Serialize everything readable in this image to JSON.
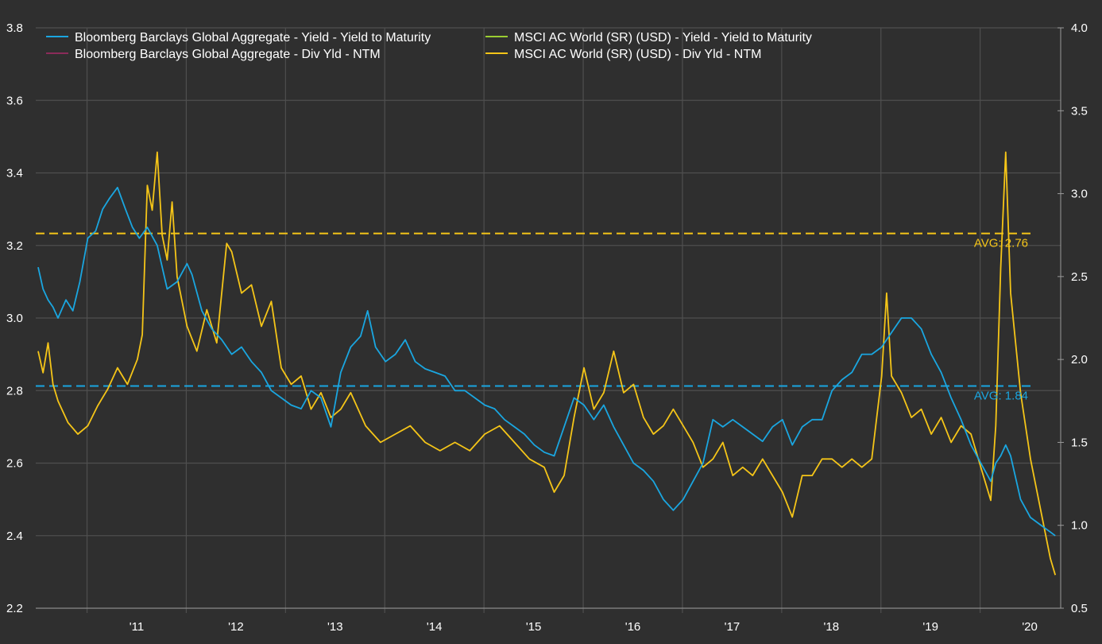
{
  "colors": {
    "background": "#2f2f2f",
    "grid": "#4f4f4f",
    "axis": "#9a9a9a",
    "yield_blue": "#1aa6e0",
    "div_yellow": "#f5c518",
    "div_maroon": "#8b2b5a",
    "msci_green": "#9acd32"
  },
  "chart_data": {
    "type": "line",
    "grid": true,
    "legend_position": "top-left",
    "x_ticks": [
      "'11",
      "'12",
      "'13",
      "'14",
      "'15",
      "'16",
      "'17",
      "'18",
      "'19",
      "'20"
    ],
    "x_range": [
      2010.0,
      2020.3
    ],
    "y_left": {
      "min": 2.2,
      "max": 3.8,
      "ticks": [
        "2.2",
        "2.4",
        "2.6",
        "2.8",
        "3.0",
        "3.2",
        "3.4",
        "3.6",
        "3.8"
      ]
    },
    "y_right": {
      "min": 0.5,
      "max": 4.0,
      "ticks": [
        "0.5",
        "1.0",
        "1.5",
        "2.0",
        "2.5",
        "3.0",
        "3.5",
        "4.0"
      ]
    },
    "legend": [
      {
        "label": "Bloomberg Barclays Global Aggregate - Yield - Yield to Maturity",
        "color": "#1aa6e0"
      },
      {
        "label": "Bloomberg Barclays Global Aggregate - Div Yld - NTM",
        "color": "#8b2b5a"
      },
      {
        "label": "MSCI AC World (SR) (USD) - Yield - Yield to Maturity",
        "color": "#9acd32"
      },
      {
        "label": "MSCI AC World (SR) (USD) - Div Yld - NTM",
        "color": "#f5c518"
      }
    ],
    "averages": [
      {
        "label": "AVG:  2.76",
        "value": 2.76,
        "axis": "right",
        "color": "#f5c518"
      },
      {
        "label": "AVG:  1.84",
        "value": 1.84,
        "axis": "right",
        "color": "#1aa6e0"
      }
    ],
    "series": [
      {
        "name": "Bloomberg Barclays Global Aggregate - Yield - Yield to Maturity",
        "axis": "left",
        "color": "#1aa6e0",
        "x": [
          2010.0,
          2010.05,
          2010.1,
          2010.15,
          2010.2,
          2010.28,
          2010.35,
          2010.42,
          2010.5,
          2010.58,
          2010.65,
          2010.72,
          2010.8,
          2010.88,
          2010.95,
          2011.02,
          2011.1,
          2011.2,
          2011.3,
          2011.4,
          2011.5,
          2011.55,
          2011.65,
          2011.75,
          2011.85,
          2011.95,
          2012.05,
          2012.15,
          2012.25,
          2012.35,
          2012.45,
          2012.55,
          2012.65,
          2012.75,
          2012.85,
          2012.95,
          2013.05,
          2013.15,
          2013.25,
          2013.32,
          2013.4,
          2013.5,
          2013.6,
          2013.7,
          2013.8,
          2013.9,
          2014.0,
          2014.1,
          2014.2,
          2014.3,
          2014.4,
          2014.5,
          2014.6,
          2014.7,
          2014.8,
          2014.9,
          2015.0,
          2015.1,
          2015.2,
          2015.3,
          2015.4,
          2015.5,
          2015.6,
          2015.7,
          2015.8,
          2015.9,
          2016.0,
          2016.1,
          2016.2,
          2016.3,
          2016.4,
          2016.5,
          2016.6,
          2016.7,
          2016.8,
          2016.9,
          2017.0,
          2017.1,
          2017.2,
          2017.3,
          2017.4,
          2017.5,
          2017.6,
          2017.7,
          2017.8,
          2017.9,
          2018.0,
          2018.1,
          2018.2,
          2018.3,
          2018.4,
          2018.5,
          2018.6,
          2018.7,
          2018.8,
          2018.9,
          2019.0,
          2019.1,
          2019.2,
          2019.3,
          2019.4,
          2019.5,
          2019.6,
          2019.65,
          2019.7,
          2019.75,
          2019.8,
          2019.9,
          2020.0,
          2020.1,
          2020.2,
          2020.25
        ],
        "y": [
          3.14,
          3.08,
          3.05,
          3.03,
          3.0,
          3.05,
          3.02,
          3.1,
          3.22,
          3.24,
          3.3,
          3.33,
          3.36,
          3.3,
          3.25,
          3.22,
          3.25,
          3.2,
          3.08,
          3.1,
          3.15,
          3.12,
          3.02,
          2.97,
          2.94,
          2.9,
          2.92,
          2.88,
          2.85,
          2.8,
          2.78,
          2.76,
          2.75,
          2.8,
          2.78,
          2.7,
          2.85,
          2.92,
          2.95,
          3.02,
          2.92,
          2.88,
          2.9,
          2.94,
          2.88,
          2.86,
          2.85,
          2.84,
          2.8,
          2.8,
          2.78,
          2.76,
          2.75,
          2.72,
          2.7,
          2.68,
          2.65,
          2.63,
          2.62,
          2.7,
          2.78,
          2.76,
          2.72,
          2.76,
          2.7,
          2.65,
          2.6,
          2.58,
          2.55,
          2.5,
          2.47,
          2.5,
          2.55,
          2.6,
          2.72,
          2.7,
          2.72,
          2.7,
          2.68,
          2.66,
          2.7,
          2.72,
          2.65,
          2.7,
          2.72,
          2.72,
          2.8,
          2.83,
          2.85,
          2.9,
          2.9,
          2.92,
          2.96,
          3.0,
          3.0,
          2.97,
          2.9,
          2.85,
          2.78,
          2.72,
          2.65,
          2.6,
          2.55,
          2.6,
          2.62,
          2.65,
          2.62,
          2.5,
          2.45,
          2.43,
          2.41,
          2.4
        ]
      },
      {
        "name": "MSCI AC World (SR) (USD) - Div Yld - NTM",
        "axis": "right",
        "color": "#f5c518",
        "x": [
          2010.0,
          2010.05,
          2010.1,
          2010.15,
          2010.2,
          2010.3,
          2010.4,
          2010.5,
          2010.6,
          2010.7,
          2010.8,
          2010.9,
          2011.0,
          2011.05,
          2011.1,
          2011.15,
          2011.2,
          2011.25,
          2011.3,
          2011.35,
          2011.4,
          2011.5,
          2011.6,
          2011.7,
          2011.8,
          2011.9,
          2011.95,
          2012.05,
          2012.15,
          2012.25,
          2012.35,
          2012.45,
          2012.55,
          2012.65,
          2012.75,
          2012.85,
          2012.95,
          2013.05,
          2013.15,
          2013.3,
          2013.45,
          2013.6,
          2013.75,
          2013.9,
          2014.05,
          2014.2,
          2014.35,
          2014.5,
          2014.65,
          2014.8,
          2014.95,
          2015.1,
          2015.2,
          2015.3,
          2015.4,
          2015.5,
          2015.6,
          2015.7,
          2015.8,
          2015.9,
          2016.0,
          2016.1,
          2016.2,
          2016.3,
          2016.4,
          2016.5,
          2016.6,
          2016.7,
          2016.8,
          2016.9,
          2017.0,
          2017.1,
          2017.2,
          2017.3,
          2017.4,
          2017.5,
          2017.6,
          2017.7,
          2017.8,
          2017.9,
          2018.0,
          2018.1,
          2018.2,
          2018.3,
          2018.4,
          2018.5,
          2018.55,
          2018.6,
          2018.7,
          2018.8,
          2018.9,
          2019.0,
          2019.1,
          2019.2,
          2019.3,
          2019.4,
          2019.5,
          2019.6,
          2019.65,
          2019.7,
          2019.75,
          2019.8,
          2019.9,
          2020.0,
          2020.1,
          2020.2,
          2020.25
        ],
        "y": [
          2.05,
          1.92,
          2.1,
          1.85,
          1.75,
          1.62,
          1.55,
          1.6,
          1.72,
          1.82,
          1.95,
          1.85,
          2.0,
          2.15,
          3.05,
          2.9,
          3.25,
          2.75,
          2.6,
          2.95,
          2.5,
          2.2,
          2.05,
          2.3,
          2.1,
          2.7,
          2.65,
          2.4,
          2.45,
          2.2,
          2.35,
          1.95,
          1.85,
          1.9,
          1.7,
          1.8,
          1.65,
          1.7,
          1.8,
          1.6,
          1.5,
          1.55,
          1.6,
          1.5,
          1.45,
          1.5,
          1.45,
          1.55,
          1.6,
          1.5,
          1.4,
          1.35,
          1.2,
          1.3,
          1.65,
          1.95,
          1.7,
          1.8,
          2.05,
          1.8,
          1.85,
          1.65,
          1.55,
          1.6,
          1.7,
          1.6,
          1.5,
          1.35,
          1.4,
          1.5,
          1.3,
          1.35,
          1.3,
          1.4,
          1.3,
          1.2,
          1.05,
          1.3,
          1.3,
          1.4,
          1.4,
          1.35,
          1.4,
          1.35,
          1.4,
          1.9,
          2.4,
          1.9,
          1.8,
          1.65,
          1.7,
          1.55,
          1.65,
          1.5,
          1.6,
          1.55,
          1.35,
          1.15,
          1.6,
          2.55,
          3.25,
          2.4,
          1.8,
          1.4,
          1.1,
          0.8,
          0.7
        ]
      }
    ]
  }
}
